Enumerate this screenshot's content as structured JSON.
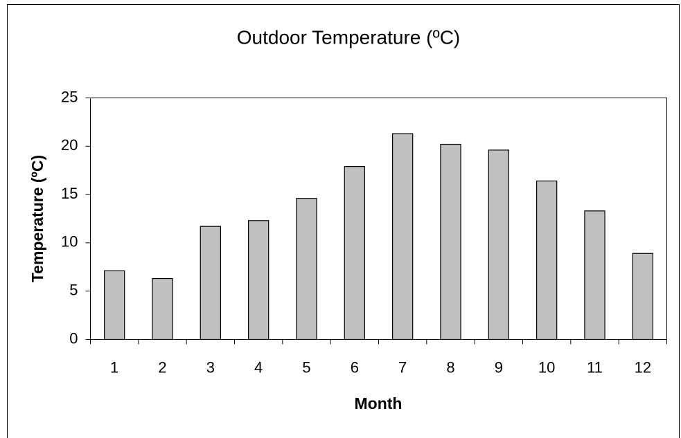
{
  "chart_data": {
    "type": "bar",
    "title": "Outdoor Temperature (ºC)",
    "x_label": "Month",
    "y_label": "Temperature (ºC)",
    "categories": [
      "1",
      "2",
      "3",
      "4",
      "5",
      "6",
      "7",
      "8",
      "9",
      "10",
      "11",
      "12"
    ],
    "values": [
      7.1,
      6.3,
      11.7,
      12.3,
      14.6,
      17.9,
      21.3,
      20.2,
      19.6,
      16.4,
      13.3,
      8.9
    ],
    "color": "#c0c0c0",
    "ylim": [
      0,
      25
    ],
    "yticks": [
      0,
      5,
      10,
      15,
      20,
      25
    ],
    "grid": false
  }
}
